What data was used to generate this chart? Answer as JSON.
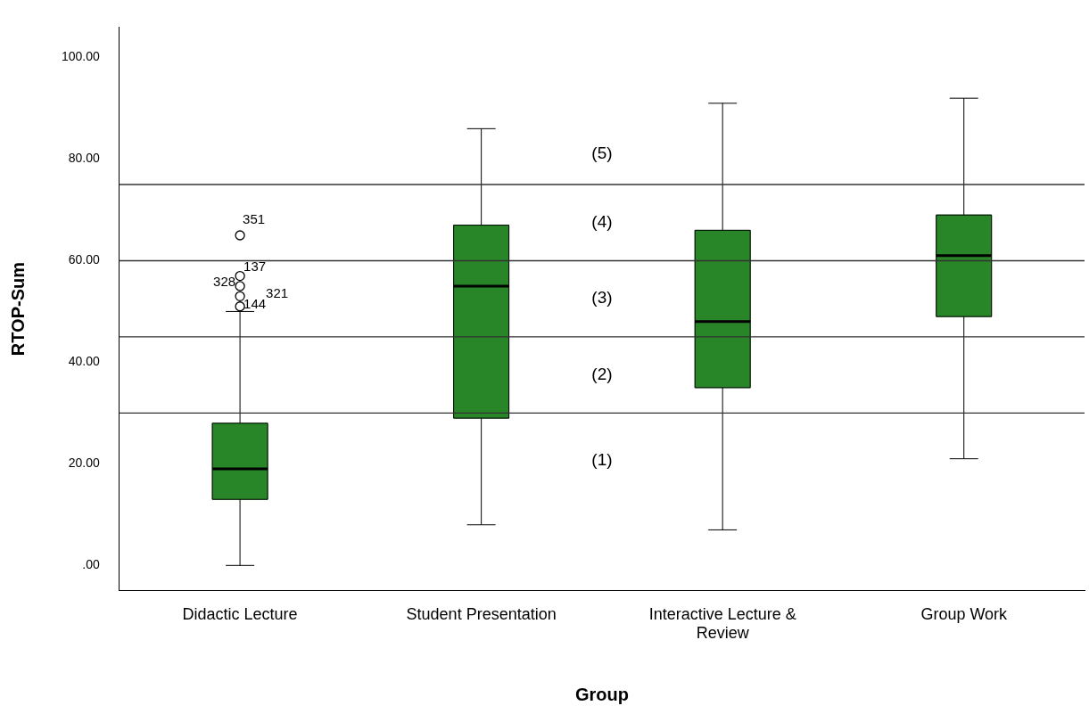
{
  "chart_data": {
    "type": "box",
    "xlabel": "Group",
    "ylabel": "RTOP-Sum",
    "categories": [
      "Didactic Lecture",
      "Student Presentation",
      "Interactive Lecture & Review",
      "Group Work"
    ],
    "color": "#288528",
    "boxes": [
      {
        "low": 0,
        "q1": 13,
        "median": 19,
        "q3": 28,
        "high": 50,
        "outliers": [
          65,
          57,
          55,
          51,
          53
        ]
      },
      {
        "low": 8,
        "q1": 29,
        "median": 55,
        "q3": 67,
        "high": 86
      },
      {
        "low": 7,
        "q1": 35,
        "median": 48,
        "q3": 66,
        "high": 91
      },
      {
        "low": 21,
        "q1": 49,
        "median": 61,
        "q3": 69,
        "high": 92
      }
    ],
    "ylim": [
      -5,
      106
    ],
    "yticks": [
      {
        "value": 0,
        "label": ".00"
      },
      {
        "value": 20,
        "label": "20.00"
      },
      {
        "value": 40,
        "label": "40.00"
      },
      {
        "value": 60,
        "label": "60.00"
      },
      {
        "value": 80,
        "label": "80.00"
      },
      {
        "value": 100,
        "label": "100.00"
      }
    ],
    "ref_lines": [
      {
        "axis": "y",
        "value": 30
      },
      {
        "axis": "y",
        "value": 45
      },
      {
        "axis": "y",
        "value": 60
      },
      {
        "axis": "y",
        "value": 75
      }
    ],
    "annotations": [
      "351",
      "137",
      "328",
      "144",
      "321",
      "(1)",
      "(2)",
      "(3)",
      "(4)",
      "(5)"
    ],
    "grid": false,
    "legend": false
  }
}
